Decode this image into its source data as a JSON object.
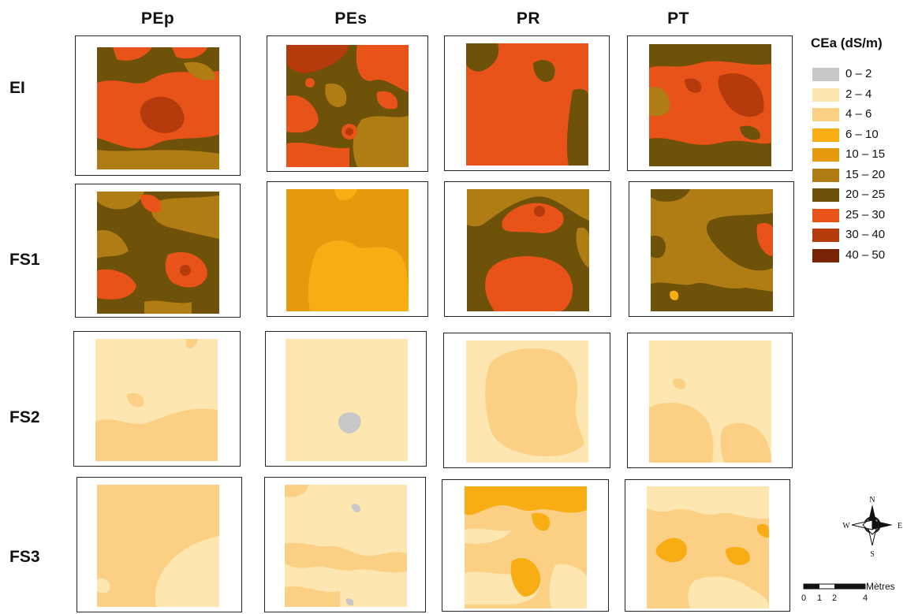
{
  "columns": [
    "PEp",
    "PEs",
    "PR",
    "PT"
  ],
  "rows": [
    "EI",
    "FS1",
    "FS2",
    "FS3"
  ],
  "legend": {
    "title": "CEa (dS/m)",
    "classes": [
      {
        "label": "0 – 2",
        "color": "#c8c8c8"
      },
      {
        "label": "2 – 4",
        "color": "#fde6b0"
      },
      {
        "label": "4 – 6",
        "color": "#fbcf84"
      },
      {
        "label": "6 – 10",
        "color": "#f9ad14"
      },
      {
        "label": "10 – 15",
        "color": "#e59a0d"
      },
      {
        "label": "15 – 20",
        "color": "#b07c14"
      },
      {
        "label": "20 – 25",
        "color": "#6e5209"
      },
      {
        "label": "25 – 30",
        "color": "#e8531a"
      },
      {
        "label": "30 – 40",
        "color": "#b53a0c"
      },
      {
        "label": "40 – 50",
        "color": "#7a2304"
      }
    ]
  },
  "compass": {
    "n": "N",
    "s": "S",
    "e": "E",
    "w": "W"
  },
  "scale": {
    "unit": "Mètres",
    "ticks": [
      "0",
      "1",
      "2",
      "4"
    ]
  }
}
